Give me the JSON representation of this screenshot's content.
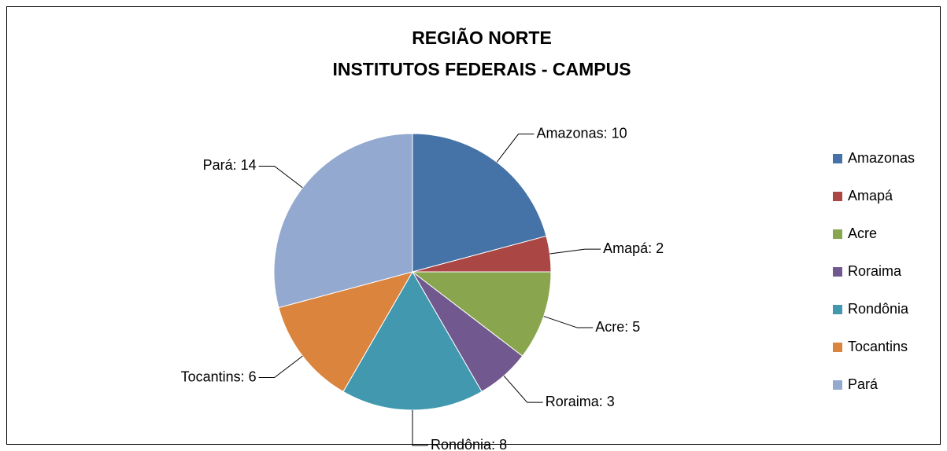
{
  "chart_data": {
    "type": "pie",
    "title": "REGIÃO NORTE",
    "subtitle": "INSTITUTOS FEDERAIS - CAMPUS",
    "categories": [
      "Amazonas",
      "Amapá",
      "Acre",
      "Roraima",
      "Rondônia",
      "Tocantins",
      "Pará"
    ],
    "values": [
      10,
      2,
      5,
      3,
      8,
      6,
      14
    ],
    "value_labels": [
      "Amazonas: 10",
      "Amapá: 2",
      "Acre: 5",
      "Roraima: 3",
      "Rondônia: 8",
      "Tocantins: 6",
      "Pará: 14"
    ],
    "colors": [
      "#4572a7",
      "#aa4643",
      "#89a54e",
      "#71588f",
      "#4198af",
      "#db843d",
      "#93a9cf"
    ],
    "legend": "right"
  }
}
